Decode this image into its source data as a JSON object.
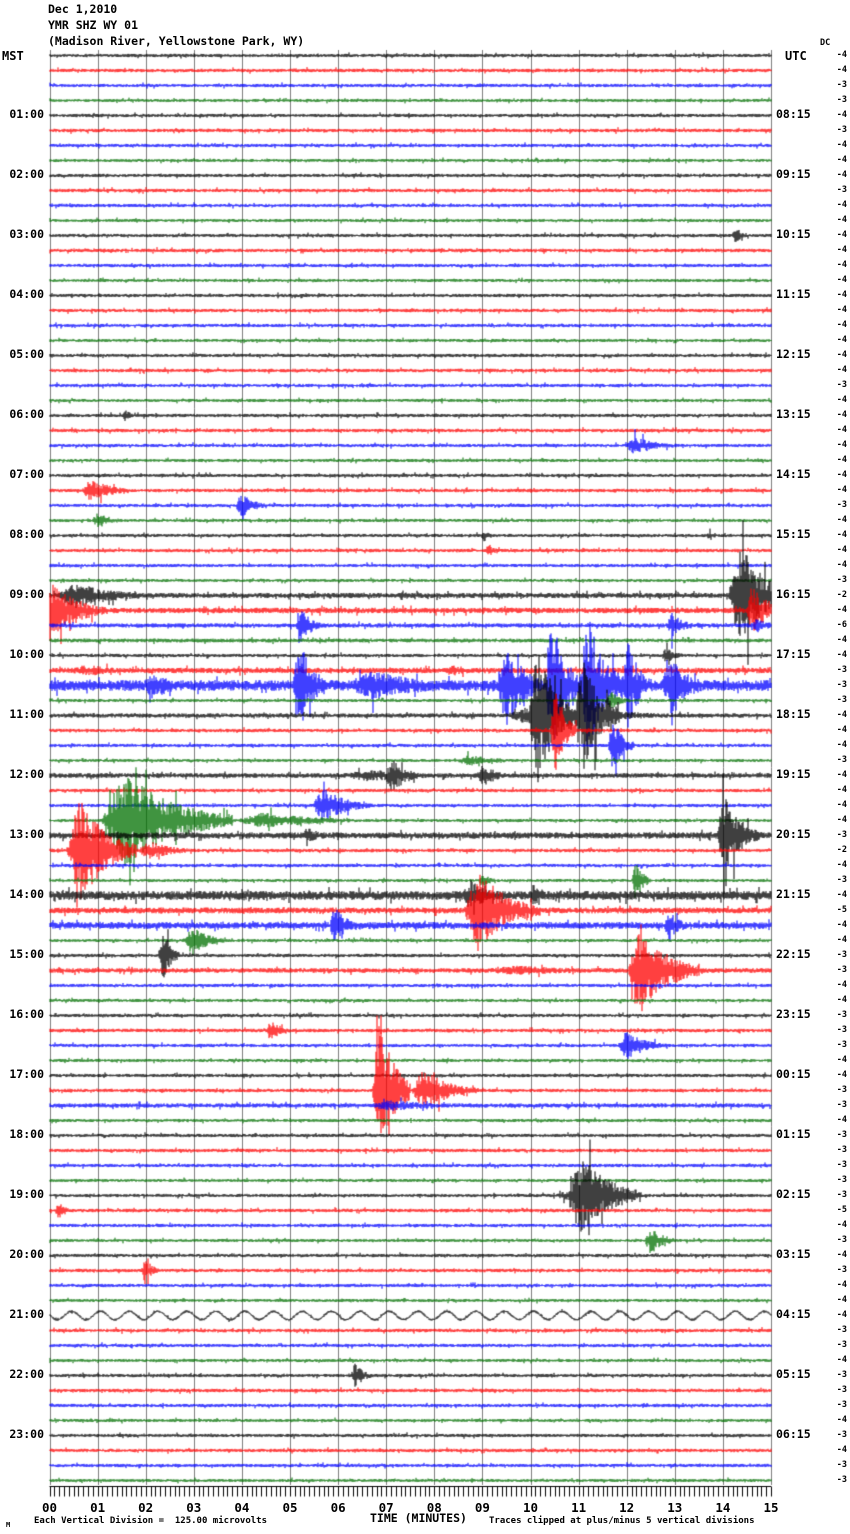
{
  "page": {
    "title_lines": [
      "Dec 1,2010",
      "YMR SHZ WY 01",
      "(Madison River, Yellowstone Park, WY)"
    ],
    "left_tz": "MST",
    "right_tz": "UTC",
    "dc_header": "DC",
    "footer": {
      "watermark": "M",
      "scale_note": "Each Vertical Division =  125.00 microvolts",
      "xlabel": "TIME (MINUTES)",
      "clip_note": "Traces clipped at plus/minus 5 vertical divisions"
    }
  },
  "chart_data": {
    "type": "line",
    "kind": "helicorder-seismogram",
    "title": "YMR SHZ WY 01 (Madison River, Yellowstone Park, WY) Dec 1,2010",
    "xlabel": "TIME (MINUTES)",
    "x_range_minutes": [
      0,
      15
    ],
    "x_tick_labels": [
      "00",
      "01",
      "02",
      "03",
      "04",
      "05",
      "06",
      "07",
      "08",
      "09",
      "10",
      "11",
      "12",
      "13",
      "14",
      "15"
    ],
    "minutes_per_line": 15,
    "lines_per_hour": 4,
    "division_microvolts": 125.0,
    "clip_divisions": 5,
    "trace_color_cycle": [
      "#000000",
      "#ff0000",
      "#0000ff",
      "#007000"
    ],
    "grid_color": "#7d7d7d",
    "default_base_amp": [
      1.7,
      1.8,
      1.7,
      1.6
    ],
    "rows": [
      {
        "c": 0,
        "dc": -4
      },
      {
        "c": 1,
        "dc": -4
      },
      {
        "c": 2,
        "dc": -3
      },
      {
        "c": 3,
        "dc": -3
      },
      {
        "c": 0,
        "dc": -4,
        "mst": "01:00",
        "utc": "08:15"
      },
      {
        "c": 1,
        "dc": -3
      },
      {
        "c": 2,
        "dc": -4
      },
      {
        "c": 3,
        "dc": -4
      },
      {
        "c": 0,
        "dc": -4,
        "mst": "02:00",
        "utc": "09:15"
      },
      {
        "c": 1,
        "dc": -3
      },
      {
        "c": 2,
        "dc": -4
      },
      {
        "c": 3,
        "dc": -4
      },
      {
        "c": 0,
        "dc": -4,
        "mst": "03:00",
        "utc": "10:15",
        "e": [
          [
            14.15,
            14.7,
            7
          ]
        ]
      },
      {
        "c": 1,
        "dc": -4
      },
      {
        "c": 2,
        "dc": -4
      },
      {
        "c": 3,
        "dc": -4
      },
      {
        "c": 0,
        "dc": -4,
        "mst": "04:00",
        "utc": "11:15"
      },
      {
        "c": 1,
        "dc": -4
      },
      {
        "c": 2,
        "dc": -4
      },
      {
        "c": 3,
        "dc": -4
      },
      {
        "c": 0,
        "dc": -4,
        "mst": "05:00",
        "utc": "12:15"
      },
      {
        "c": 1,
        "dc": -4
      },
      {
        "c": 2,
        "dc": -3
      },
      {
        "c": 3,
        "dc": -4
      },
      {
        "c": 0,
        "dc": -4,
        "mst": "06:00",
        "utc": "13:15",
        "e": [
          [
            1.5,
            1.85,
            6
          ]
        ]
      },
      {
        "c": 1,
        "dc": -4
      },
      {
        "c": 2,
        "dc": -4,
        "e": [
          [
            11.9,
            13.3,
            9
          ]
        ]
      },
      {
        "c": 3,
        "dc": -4
      },
      {
        "c": 0,
        "dc": -4,
        "mst": "07:00",
        "utc": "14:15"
      },
      {
        "c": 1,
        "dc": -4,
        "e": [
          [
            0.65,
            1.75,
            13
          ]
        ]
      },
      {
        "c": 2,
        "dc": -3,
        "e": [
          [
            3.85,
            4.55,
            13
          ]
        ]
      },
      {
        "c": 3,
        "dc": -4,
        "e": [
          [
            0.85,
            1.65,
            8
          ]
        ]
      },
      {
        "c": 0,
        "dc": -4,
        "mst": "08:00",
        "utc": "15:15",
        "e": [
          [
            8.95,
            9.35,
            6
          ],
          [
            13.65,
            14.05,
            5
          ]
        ]
      },
      {
        "c": 1,
        "dc": -4,
        "e": [
          [
            9.05,
            9.45,
            6
          ]
        ]
      },
      {
        "c": 2,
        "dc": -4
      },
      {
        "c": 3,
        "dc": -3
      },
      {
        "c": 0,
        "dc": -2,
        "mst": "09:00",
        "utc": "16:15",
        "b": 2.6,
        "e": [
          [
            0.1,
            2.4,
            13
          ],
          [
            7.25,
            7.65,
            6
          ],
          [
            14.1,
            15.4,
            55
          ]
        ]
      },
      {
        "c": 1,
        "dc": -4,
        "b": 2.8,
        "e": [
          [
            -0.3,
            1.2,
            32
          ],
          [
            14.45,
            15.4,
            24
          ]
        ]
      },
      {
        "c": 2,
        "dc": -6,
        "b": 2.2,
        "e": [
          [
            5.1,
            5.7,
            18
          ],
          [
            12.8,
            13.5,
            13
          ],
          [
            14.55,
            15.3,
            8
          ]
        ]
      },
      {
        "c": 3,
        "dc": -4,
        "b": 2.0
      },
      {
        "c": 0,
        "dc": -4,
        "mst": "10:00",
        "utc": "17:15",
        "e": [
          [
            12.7,
            13.3,
            8
          ]
        ]
      },
      {
        "c": 1,
        "dc": -3,
        "b": 2.8,
        "e": [
          [
            0.3,
            2.7,
            6
          ],
          [
            8.1,
            9.5,
            6
          ]
        ]
      },
      {
        "c": 2,
        "dc": -3,
        "b": 5.5,
        "e": [
          [
            1.9,
            3.2,
            14
          ],
          [
            5.05,
            5.7,
            55
          ],
          [
            6.1,
            9.3,
            15
          ],
          [
            9.3,
            10.3,
            45
          ],
          [
            10.3,
            11.05,
            75
          ],
          [
            11.0,
            11.95,
            75
          ],
          [
            11.9,
            12.55,
            45
          ],
          [
            12.7,
            13.75,
            30
          ]
        ]
      },
      {
        "c": 3,
        "dc": -3,
        "e": [
          [
            11.55,
            12.15,
            9
          ]
        ]
      },
      {
        "c": 0,
        "dc": -4,
        "mst": "11:00",
        "utc": "18:15",
        "b": 2.2,
        "e": [
          [
            9.4,
            13.3,
            13
          ],
          [
            9.95,
            10.95,
            75
          ],
          [
            10.9,
            11.85,
            60
          ]
        ]
      },
      {
        "c": 1,
        "dc": -4,
        "e": [
          [
            10.4,
            10.95,
            45
          ]
        ]
      },
      {
        "c": 2,
        "dc": -4,
        "e": [
          [
            11.6,
            12.15,
            30
          ]
        ]
      },
      {
        "c": 3,
        "dc": -3,
        "e": [
          [
            8.4,
            10.1,
            6
          ]
        ]
      },
      {
        "c": 0,
        "dc": -4,
        "mst": "12:00",
        "utc": "19:15",
        "b": 2.4,
        "e": [
          [
            5.9,
            9.8,
            6
          ],
          [
            6.95,
            7.8,
            18
          ],
          [
            8.85,
            9.6,
            13
          ]
        ]
      },
      {
        "c": 1,
        "dc": -4
      },
      {
        "c": 2,
        "dc": -4,
        "e": [
          [
            5.45,
            6.7,
            19
          ]
        ]
      },
      {
        "c": 3,
        "dc": -4,
        "e": [
          [
            1.05,
            3.8,
            50
          ],
          [
            3.8,
            7.2,
            8
          ]
        ]
      },
      {
        "c": 0,
        "dc": -3,
        "mst": "13:00",
        "utc": "20:15",
        "b": 3.2,
        "e": [
          [
            5.25,
            5.75,
            13
          ],
          [
            13.85,
            14.75,
            42
          ]
        ]
      },
      {
        "c": 1,
        "dc": -2,
        "e": [
          [
            0.35,
            1.8,
            55
          ],
          [
            1.8,
            3.2,
            10
          ]
        ]
      },
      {
        "c": 2,
        "dc": -4
      },
      {
        "c": 3,
        "dc": -3,
        "e": [
          [
            8.9,
            9.4,
            7
          ],
          [
            12.1,
            12.5,
            22
          ]
        ]
      },
      {
        "c": 0,
        "dc": -4,
        "mst": "14:00",
        "utc": "21:15",
        "b": 4.5,
        "e": [
          [
            8.55,
            9.5,
            17
          ],
          [
            9.9,
            10.7,
            11
          ]
        ]
      },
      {
        "c": 1,
        "dc": -5,
        "b": 3.0,
        "e": [
          [
            8.6,
            10.2,
            42
          ]
        ]
      },
      {
        "c": 2,
        "dc": -4,
        "b": 3.4,
        "e": [
          [
            5.8,
            6.45,
            20
          ],
          [
            12.75,
            13.4,
            15
          ]
        ]
      },
      {
        "c": 3,
        "dc": -4,
        "e": [
          [
            2.8,
            3.65,
            16
          ]
        ]
      },
      {
        "c": 0,
        "dc": -3,
        "mst": "15:00",
        "utc": "22:15",
        "e": [
          [
            2.25,
            2.7,
            28
          ]
        ]
      },
      {
        "c": 1,
        "dc": -3,
        "b": 2.4,
        "e": [
          [
            8.8,
            13.6,
            5
          ],
          [
            12.0,
            13.5,
            45
          ]
        ]
      },
      {
        "c": 2,
        "dc": -4
      },
      {
        "c": 3,
        "dc": -4
      },
      {
        "c": 0,
        "dc": -3,
        "mst": "16:00",
        "utc": "23:15"
      },
      {
        "c": 1,
        "dc": -3,
        "e": [
          [
            4.5,
            5.1,
            10
          ]
        ]
      },
      {
        "c": 2,
        "dc": -3,
        "e": [
          [
            11.8,
            12.85,
            16
          ]
        ]
      },
      {
        "c": 3,
        "dc": -4
      },
      {
        "c": 0,
        "dc": -4,
        "mst": "17:00",
        "utc": "00:15"
      },
      {
        "c": 1,
        "dc": -3,
        "e": [
          [
            6.7,
            7.5,
            75
          ],
          [
            7.5,
            8.9,
            22
          ]
        ]
      },
      {
        "c": 2,
        "dc": -3,
        "b": 2.2,
        "e": [
          [
            6.55,
            9.3,
            6
          ]
        ]
      },
      {
        "c": 3,
        "dc": -4
      },
      {
        "c": 0,
        "dc": -3,
        "mst": "18:00",
        "utc": "01:15"
      },
      {
        "c": 1,
        "dc": -3
      },
      {
        "c": 2,
        "dc": -3
      },
      {
        "c": 3,
        "dc": -3
      },
      {
        "c": 0,
        "dc": -3,
        "mst": "19:00",
        "utc": "02:15",
        "e": [
          [
            10.4,
            13.1,
            7
          ],
          [
            10.75,
            12.3,
            42
          ]
        ]
      },
      {
        "c": 1,
        "dc": -5,
        "e": [
          [
            0.1,
            0.5,
            10
          ]
        ]
      },
      {
        "c": 2,
        "dc": -4
      },
      {
        "c": 3,
        "dc": -3,
        "e": [
          [
            12.35,
            13.1,
            14
          ]
        ]
      },
      {
        "c": 0,
        "dc": -4,
        "mst": "20:00",
        "utc": "03:15"
      },
      {
        "c": 1,
        "dc": -3,
        "e": [
          [
            1.9,
            2.3,
            14
          ]
        ]
      },
      {
        "c": 2,
        "dc": -4
      },
      {
        "c": 3,
        "dc": -4
      },
      {
        "c": 0,
        "dc": -4,
        "mst": "21:00",
        "utc": "04:15",
        "b": 1.3,
        "s": true
      },
      {
        "c": 1,
        "dc": -3
      },
      {
        "c": 2,
        "dc": -3
      },
      {
        "c": 3,
        "dc": -4
      },
      {
        "c": 0,
        "dc": -3,
        "mst": "22:00",
        "utc": "05:15",
        "e": [
          [
            6.25,
            6.75,
            13
          ]
        ]
      },
      {
        "c": 1,
        "dc": -3
      },
      {
        "c": 2,
        "dc": -3
      },
      {
        "c": 3,
        "dc": -4
      },
      {
        "c": 0,
        "dc": -3,
        "mst": "23:00",
        "utc": "06:15"
      },
      {
        "c": 1,
        "dc": -4
      },
      {
        "c": 2,
        "dc": -3
      },
      {
        "c": 3,
        "dc": -3
      }
    ]
  }
}
